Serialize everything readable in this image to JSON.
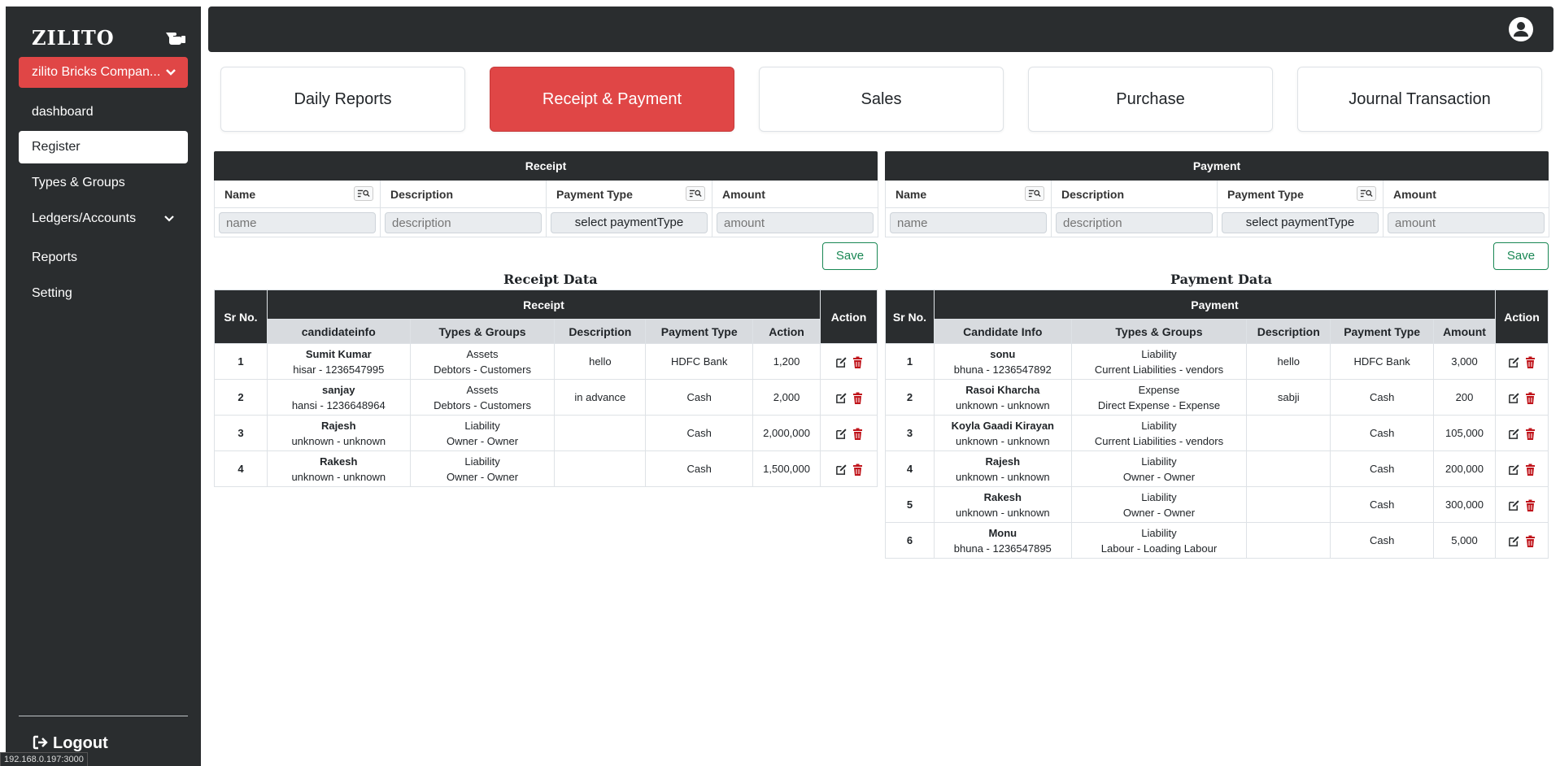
{
  "sidebar": {
    "brand": "ZILITO",
    "company": "zilito Bricks Compan...",
    "items": [
      {
        "label": "dashboard"
      },
      {
        "label": "Register"
      },
      {
        "label": "Types & Groups"
      },
      {
        "label": "Ledgers/Accounts"
      },
      {
        "label": "Reports"
      },
      {
        "label": "Setting"
      }
    ],
    "logout": "Logout"
  },
  "status_url": "192.168.0.197:3000",
  "tabs": [
    "Daily Reports",
    "Receipt & Payment",
    "Sales",
    "Purchase",
    "Journal Transaction"
  ],
  "receipt_form": {
    "title": "Receipt",
    "headers": [
      "Name",
      "Description",
      "Payment Type",
      "Amount"
    ],
    "placeholders": {
      "name": "name",
      "description": "description",
      "amount": "amount"
    },
    "payment_type": "select paymentType",
    "save": "Save"
  },
  "payment_form": {
    "title": "Payment",
    "headers": [
      "Name",
      "Description",
      "Payment Type",
      "Amount"
    ],
    "placeholders": {
      "name": "name",
      "description": "description",
      "amount": "amount"
    },
    "payment_type": "select paymentType",
    "save": "Save"
  },
  "receipt_data": {
    "title": "Receipt Data",
    "group": "Receipt",
    "sr": "Sr No.",
    "action": "Action",
    "columns": [
      "candidateinfo",
      "Types & Groups",
      "Description",
      "Payment Type",
      "Action"
    ],
    "rows": [
      {
        "sr": "1",
        "name": "Sumit Kumar",
        "info": "hisar - 1236547995",
        "type": "Assets",
        "group": "Debtors - Customers",
        "desc": "hello",
        "ptype": "HDFC Bank",
        "amount": "1,200"
      },
      {
        "sr": "2",
        "name": "sanjay",
        "info": "hansi - 1236648964",
        "type": "Assets",
        "group": "Debtors - Customers",
        "desc": "in advance",
        "ptype": "Cash",
        "amount": "2,000"
      },
      {
        "sr": "3",
        "name": "Rajesh",
        "info": "unknown - unknown",
        "type": "Liability",
        "group": "Owner - Owner",
        "desc": "",
        "ptype": "Cash",
        "amount": "2,000,000"
      },
      {
        "sr": "4",
        "name": "Rakesh",
        "info": "unknown - unknown",
        "type": "Liability",
        "group": "Owner - Owner",
        "desc": "",
        "ptype": "Cash",
        "amount": "1,500,000"
      }
    ]
  },
  "payment_data": {
    "title": "Payment Data",
    "group": "Payment",
    "sr": "Sr No.",
    "action": "Action",
    "columns": [
      "Candidate Info",
      "Types & Groups",
      "Description",
      "Payment Type",
      "Amount"
    ],
    "rows": [
      {
        "sr": "1",
        "name": "sonu",
        "info": "bhuna - 1236547892",
        "type": "Liability",
        "group": "Current Liabilities - vendors",
        "desc": "hello",
        "ptype": "HDFC Bank",
        "amount": "3,000"
      },
      {
        "sr": "2",
        "name": "Rasoi Kharcha",
        "info": "unknown - unknown",
        "type": "Expense",
        "group": "Direct Expense - Expense",
        "desc": "sabji",
        "ptype": "Cash",
        "amount": "200"
      },
      {
        "sr": "3",
        "name": "Koyla Gaadi Kirayan",
        "info": "unknown - unknown",
        "type": "Liability",
        "group": "Current Liabilities - vendors",
        "desc": "",
        "ptype": "Cash",
        "amount": "105,000"
      },
      {
        "sr": "4",
        "name": "Rajesh",
        "info": "unknown - unknown",
        "type": "Liability",
        "group": "Owner - Owner",
        "desc": "",
        "ptype": "Cash",
        "amount": "200,000"
      },
      {
        "sr": "5",
        "name": "Rakesh",
        "info": "unknown - unknown",
        "type": "Liability",
        "group": "Owner - Owner",
        "desc": "",
        "ptype": "Cash",
        "amount": "300,000"
      },
      {
        "sr": "6",
        "name": "Monu",
        "info": "bhuna - 1236547895",
        "type": "Liability",
        "group": "Labour - Loading Labour",
        "desc": "",
        "ptype": "Cash",
        "amount": "5,000"
      }
    ]
  },
  "colors": {
    "dark": "#2a2d2f",
    "accent": "#e04646",
    "success": "#198754",
    "edit": "#2a2d2f",
    "delete": "#c0141b"
  }
}
